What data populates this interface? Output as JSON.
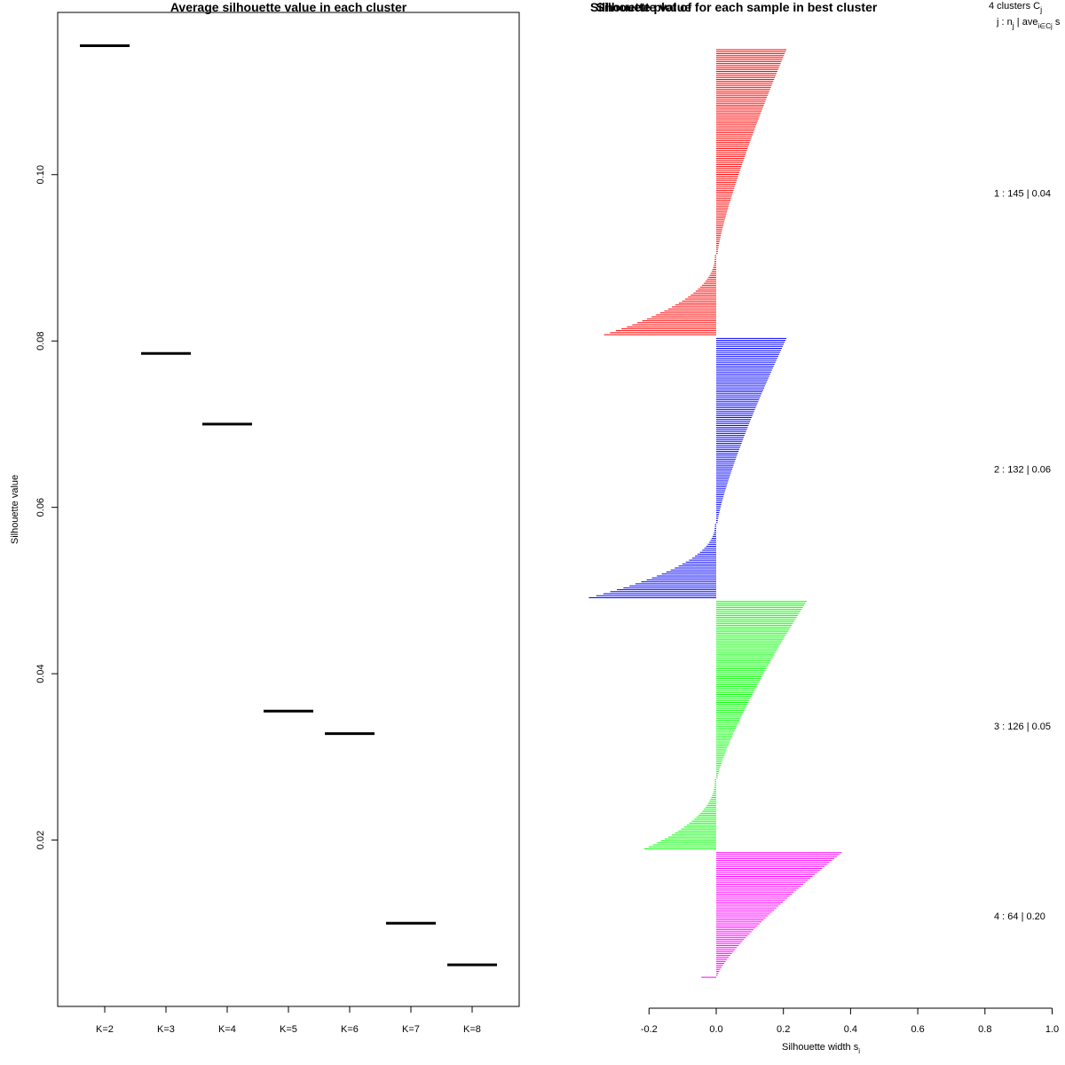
{
  "chart_data": [
    {
      "type": "line",
      "title": "Average silhouette value in each cluster",
      "xlabel": "",
      "ylabel": "Silhouette value",
      "categories": [
        "K=2",
        "K=3",
        "K=4",
        "K=5",
        "K=6",
        "K=7",
        "K=8"
      ],
      "values": [
        0.1155,
        0.0785,
        0.07,
        0.0355,
        0.0328,
        0.01,
        0.005
      ],
      "yticks": [
        "0.02",
        "0.04",
        "0.06",
        "0.08",
        "0.10"
      ],
      "ylim": [
        0.0,
        0.1195
      ],
      "grid": false
    },
    {
      "type": "bar",
      "orientation": "horizontal",
      "title": "Silhouette value for each sample in best cluster",
      "overlap_title": "Silhouette plot of",
      "xlabel": "Silhouette width s",
      "xlabel_sub": "i",
      "xlim": [
        -0.2,
        1.0
      ],
      "xticks": [
        "-0.2",
        "0.0",
        "0.2",
        "0.4",
        "0.6",
        "0.8",
        "1.0"
      ],
      "header": {
        "line1": "4  clusters  C",
        "line1_sub": "j",
        "line2": "j :  n",
        "line2_sub": "j",
        "line2_rest": " | ave",
        "line2_sub2": "i∈Cj",
        "line2_tail": "  s"
      },
      "series": [
        {
          "name": "1",
          "color": "#ff0000",
          "n": 145,
          "label": "1 :  145  |  0.04",
          "max": 0.205,
          "min": -0.33,
          "pos_count": 104
        },
        {
          "name": "2",
          "color": "#0000ff",
          "n": 132,
          "label": "2 :  132  |  0.06",
          "max": 0.205,
          "min": -0.375,
          "pos_count": 94
        },
        {
          "name": "3",
          "color": "#00ff00",
          "n": 126,
          "label": "3 :  126  |  0.05",
          "max": 0.265,
          "min": -0.21,
          "pos_count": 90
        },
        {
          "name": "4",
          "color": "#ff00ff",
          "n": 64,
          "label": "4 :  64  |  0.20",
          "max": 0.37,
          "min": -0.04,
          "pos_count": 63
        }
      ]
    }
  ]
}
